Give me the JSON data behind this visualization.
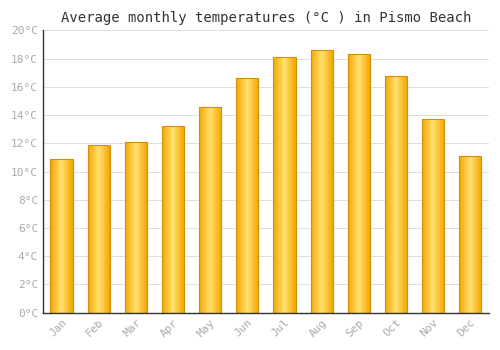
{
  "title": "Average monthly temperatures (°C ) in Pismo Beach",
  "months": [
    "Jan",
    "Feb",
    "Mar",
    "Apr",
    "May",
    "Jun",
    "Jul",
    "Aug",
    "Sep",
    "Oct",
    "Nov",
    "Dec"
  ],
  "values": [
    10.9,
    11.9,
    12.1,
    13.2,
    14.6,
    16.6,
    18.1,
    18.6,
    18.3,
    16.8,
    13.7,
    11.1
  ],
  "bar_color_edge": "#F5A800",
  "bar_color_center": "#FFE070",
  "background_color": "#FFFFFF",
  "grid_color": "#DDDDDD",
  "ylim": [
    0,
    20
  ],
  "ytick_step": 2,
  "title_fontsize": 10,
  "tick_fontsize": 8,
  "tick_color": "#AAAAAA",
  "spine_color": "#333333",
  "font_family": "monospace",
  "bar_width": 0.6
}
